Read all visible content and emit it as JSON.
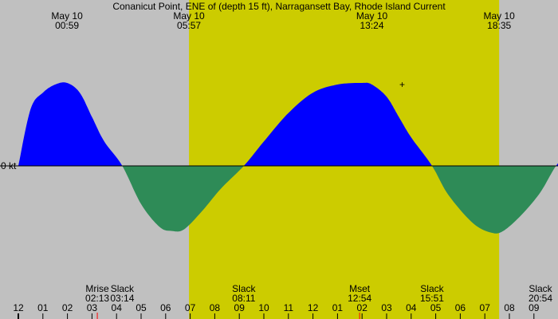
{
  "chart_data": {
    "type": "area",
    "title": "Conanicut Point, ENE of (depth 15 ft), Narragansett Bay, Rhode Island Current",
    "zero_label": "0 kt",
    "colors": {
      "background": "#c0c0c0",
      "daylight": "#cccc00",
      "flood": "#0000ff",
      "ebb": "#2e8b57",
      "moon_tick": "#ff0000"
    },
    "daylight": {
      "start": "05:57",
      "end": "18:35"
    },
    "x_range_hours": [
      23.75,
      33.2
    ],
    "x_ticks": [
      "11",
      "12",
      "01",
      "02",
      "03",
      "04",
      "05",
      "06",
      "07",
      "08",
      "09",
      "10",
      "11",
      "12",
      "01",
      "02",
      "03",
      "04",
      "05",
      "06",
      "07",
      "08",
      "09"
    ],
    "top_events": [
      {
        "date": "May 10",
        "time": "00:59"
      },
      {
        "date": "May 10",
        "time": "05:57"
      },
      {
        "date": "May 10",
        "time": "13:24"
      },
      {
        "date": "May 10",
        "time": "18:35"
      }
    ],
    "bottom_events": [
      {
        "label": "Mrise",
        "time": "02:13"
      },
      {
        "label": "Slack",
        "time": "03:14"
      },
      {
        "label": "Slack",
        "time": "08:11"
      },
      {
        "label": "Mset",
        "time": "12:54"
      },
      {
        "label": "Slack",
        "time": "15:51"
      },
      {
        "label": "Slack",
        "time": "20:54"
      }
    ],
    "series": [
      {
        "values": [
          {
            "t": "23:00",
            "v": 0.0
          },
          {
            "t": "23:30",
            "v": 0.7
          },
          {
            "t": "00:00",
            "v": 0.9
          },
          {
            "t": "00:30",
            "v": 1.0
          },
          {
            "t": "00:59",
            "v": 1.02
          },
          {
            "t": "01:30",
            "v": 0.9
          },
          {
            "t": "02:00",
            "v": 0.6
          },
          {
            "t": "02:30",
            "v": 0.3
          },
          {
            "t": "03:14",
            "v": 0.0
          },
          {
            "t": "04:00",
            "v": -0.47
          },
          {
            "t": "04:45",
            "v": -0.75
          },
          {
            "t": "05:15",
            "v": -0.8
          },
          {
            "t": "05:45",
            "v": -0.78
          },
          {
            "t": "06:30",
            "v": -0.55
          },
          {
            "t": "07:15",
            "v": -0.28
          },
          {
            "t": "08:11",
            "v": 0.0
          },
          {
            "t": "09:00",
            "v": 0.3
          },
          {
            "t": "10:00",
            "v": 0.65
          },
          {
            "t": "11:00",
            "v": 0.9
          },
          {
            "t": "12:00",
            "v": 1.0
          },
          {
            "t": "13:00",
            "v": 1.02
          },
          {
            "t": "13:24",
            "v": 1.0
          },
          {
            "t": "14:00",
            "v": 0.85
          },
          {
            "t": "14:30",
            "v": 0.6
          },
          {
            "t": "15:00",
            "v": 0.35
          },
          {
            "t": "15:51",
            "v": 0.0
          },
          {
            "t": "16:30",
            "v": -0.35
          },
          {
            "t": "17:30",
            "v": -0.7
          },
          {
            "t": "18:15",
            "v": -0.82
          },
          {
            "t": "18:45",
            "v": -0.8
          },
          {
            "t": "19:30",
            "v": -0.6
          },
          {
            "t": "20:15",
            "v": -0.33
          },
          {
            "t": "20:54",
            "v": 0.0
          },
          {
            "t": "21:30",
            "v": 0.2
          }
        ]
      }
    ]
  }
}
